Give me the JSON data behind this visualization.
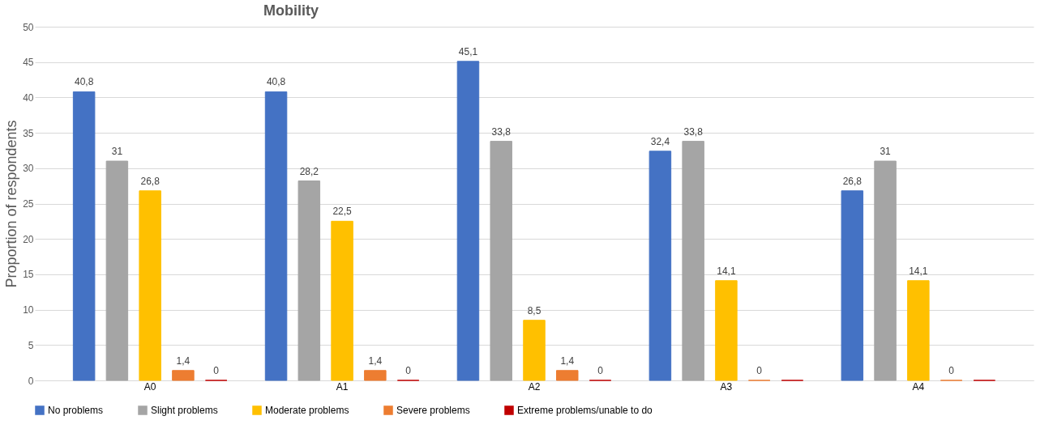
{
  "chart_data": {
    "type": "bar",
    "title": "Mobility",
    "ylabel": "Proportion of respondents",
    "categories": [
      "A0",
      "A1",
      "A2",
      "A3",
      "A4"
    ],
    "series": [
      {
        "name": "No problems",
        "color": "#4472c4",
        "values": [
          40.8,
          40.8,
          45.1,
          32.4,
          26.8
        ],
        "value_labels": [
          "40,8",
          "40,8",
          "45,1",
          "32,4",
          "26,8"
        ]
      },
      {
        "name": "Slight problems",
        "color": "#a5a5a5",
        "values": [
          31,
          28.2,
          33.8,
          33.8,
          31
        ],
        "value_labels": [
          "31",
          "28,2",
          "33,8",
          "33,8",
          "31"
        ]
      },
      {
        "name": "Moderate problems",
        "color": "#ffc000",
        "values": [
          26.8,
          22.5,
          8.5,
          14.1,
          14.1
        ],
        "value_labels": [
          "26,8",
          "22,5",
          "8,5",
          "14,1",
          "14,1"
        ]
      },
      {
        "name": "Severe problems",
        "color": "#ed7d31",
        "values": [
          1.4,
          1.4,
          1.4,
          0,
          0
        ],
        "value_labels": [
          "1,4",
          "1,4",
          "1,4",
          "0",
          "0"
        ]
      },
      {
        "name": "Extreme problems/unable to do",
        "color": "#c00000",
        "values": [
          0,
          0,
          0,
          0,
          0
        ],
        "value_labels": [
          "0",
          "0",
          "0",
          null,
          null
        ]
      }
    ],
    "ylim": [
      0,
      50
    ],
    "yticks": [
      0,
      5,
      10,
      15,
      20,
      25,
      30,
      35,
      40,
      45,
      50
    ],
    "grid": "y",
    "legend": "bottom"
  }
}
